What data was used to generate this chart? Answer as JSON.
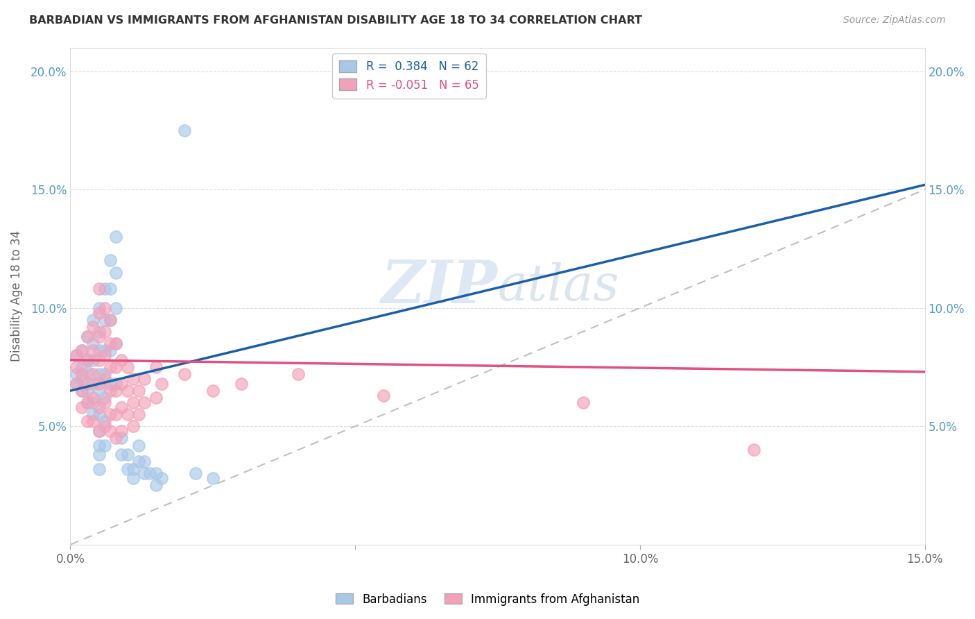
{
  "title": "BARBADIAN VS IMMIGRANTS FROM AFGHANISTAN DISABILITY AGE 18 TO 34 CORRELATION CHART",
  "source": "Source: ZipAtlas.com",
  "ylabel": "Disability Age 18 to 34",
  "xlim": [
    0.0,
    0.15
  ],
  "ylim": [
    0.0,
    0.21
  ],
  "xticks": [
    0.0,
    0.05,
    0.1,
    0.15
  ],
  "xticklabels": [
    "0.0%",
    "",
    "10.0%",
    "15.0%"
  ],
  "yticks_left": [
    0.05,
    0.1,
    0.15,
    0.2
  ],
  "yticklabels_left": [
    "5.0%",
    "10.0%",
    "15.0%",
    "20.0%"
  ],
  "yticks_right": [
    0.05,
    0.1,
    0.15,
    0.2
  ],
  "yticklabels_right": [
    "5.0%",
    "10.0%",
    "15.0%",
    "20.0%"
  ],
  "blue_color": "#a8c8e8",
  "pink_color": "#f4a0b8",
  "trendline_blue": "#1a5fa8",
  "trendline_pink": "#e05080",
  "watermark_color": "#c8d8ee",
  "barbadian_points": [
    [
      0.001,
      0.068
    ],
    [
      0.001,
      0.072
    ],
    [
      0.001,
      0.08
    ],
    [
      0.002,
      0.075
    ],
    [
      0.002,
      0.065
    ],
    [
      0.002,
      0.082
    ],
    [
      0.002,
      0.07
    ],
    [
      0.003,
      0.078
    ],
    [
      0.003,
      0.065
    ],
    [
      0.003,
      0.088
    ],
    [
      0.003,
      0.073
    ],
    [
      0.003,
      0.06
    ],
    [
      0.004,
      0.095
    ],
    [
      0.004,
      0.085
    ],
    [
      0.004,
      0.078
    ],
    [
      0.004,
      0.068
    ],
    [
      0.004,
      0.06
    ],
    [
      0.004,
      0.055
    ],
    [
      0.005,
      0.1
    ],
    [
      0.005,
      0.09
    ],
    [
      0.005,
      0.082
    ],
    [
      0.005,
      0.072
    ],
    [
      0.005,
      0.065
    ],
    [
      0.005,
      0.055
    ],
    [
      0.005,
      0.048
    ],
    [
      0.005,
      0.042
    ],
    [
      0.005,
      0.038
    ],
    [
      0.005,
      0.032
    ],
    [
      0.006,
      0.108
    ],
    [
      0.006,
      0.095
    ],
    [
      0.006,
      0.082
    ],
    [
      0.006,
      0.072
    ],
    [
      0.006,
      0.062
    ],
    [
      0.006,
      0.052
    ],
    [
      0.006,
      0.042
    ],
    [
      0.007,
      0.12
    ],
    [
      0.007,
      0.108
    ],
    [
      0.007,
      0.095
    ],
    [
      0.007,
      0.082
    ],
    [
      0.007,
      0.068
    ],
    [
      0.008,
      0.13
    ],
    [
      0.008,
      0.115
    ],
    [
      0.008,
      0.1
    ],
    [
      0.008,
      0.085
    ],
    [
      0.008,
      0.068
    ],
    [
      0.009,
      0.045
    ],
    [
      0.009,
      0.038
    ],
    [
      0.01,
      0.032
    ],
    [
      0.01,
      0.038
    ],
    [
      0.011,
      0.028
    ],
    [
      0.011,
      0.032
    ],
    [
      0.012,
      0.042
    ],
    [
      0.012,
      0.035
    ],
    [
      0.013,
      0.035
    ],
    [
      0.013,
      0.03
    ],
    [
      0.014,
      0.03
    ],
    [
      0.015,
      0.025
    ],
    [
      0.015,
      0.03
    ],
    [
      0.016,
      0.028
    ],
    [
      0.02,
      0.175
    ],
    [
      0.022,
      0.03
    ],
    [
      0.025,
      0.028
    ]
  ],
  "afghanistan_points": [
    [
      0.001,
      0.075
    ],
    [
      0.001,
      0.068
    ],
    [
      0.001,
      0.08
    ],
    [
      0.002,
      0.082
    ],
    [
      0.002,
      0.072
    ],
    [
      0.002,
      0.065
    ],
    [
      0.002,
      0.058
    ],
    [
      0.003,
      0.088
    ],
    [
      0.003,
      0.078
    ],
    [
      0.003,
      0.068
    ],
    [
      0.003,
      0.06
    ],
    [
      0.003,
      0.052
    ],
    [
      0.004,
      0.092
    ],
    [
      0.004,
      0.082
    ],
    [
      0.004,
      0.072
    ],
    [
      0.004,
      0.062
    ],
    [
      0.004,
      0.052
    ],
    [
      0.005,
      0.108
    ],
    [
      0.005,
      0.098
    ],
    [
      0.005,
      0.088
    ],
    [
      0.005,
      0.078
    ],
    [
      0.005,
      0.068
    ],
    [
      0.005,
      0.058
    ],
    [
      0.005,
      0.048
    ],
    [
      0.006,
      0.1
    ],
    [
      0.006,
      0.09
    ],
    [
      0.006,
      0.08
    ],
    [
      0.006,
      0.07
    ],
    [
      0.006,
      0.06
    ],
    [
      0.006,
      0.05
    ],
    [
      0.007,
      0.095
    ],
    [
      0.007,
      0.085
    ],
    [
      0.007,
      0.075
    ],
    [
      0.007,
      0.065
    ],
    [
      0.007,
      0.055
    ],
    [
      0.007,
      0.048
    ],
    [
      0.008,
      0.085
    ],
    [
      0.008,
      0.075
    ],
    [
      0.008,
      0.065
    ],
    [
      0.008,
      0.055
    ],
    [
      0.008,
      0.045
    ],
    [
      0.009,
      0.078
    ],
    [
      0.009,
      0.068
    ],
    [
      0.009,
      0.058
    ],
    [
      0.009,
      0.048
    ],
    [
      0.01,
      0.075
    ],
    [
      0.01,
      0.065
    ],
    [
      0.01,
      0.055
    ],
    [
      0.011,
      0.07
    ],
    [
      0.011,
      0.06
    ],
    [
      0.011,
      0.05
    ],
    [
      0.012,
      0.065
    ],
    [
      0.012,
      0.055
    ],
    [
      0.013,
      0.07
    ],
    [
      0.013,
      0.06
    ],
    [
      0.015,
      0.075
    ],
    [
      0.015,
      0.062
    ],
    [
      0.016,
      0.068
    ],
    [
      0.02,
      0.072
    ],
    [
      0.025,
      0.065
    ],
    [
      0.03,
      0.068
    ],
    [
      0.04,
      0.072
    ],
    [
      0.055,
      0.063
    ],
    [
      0.09,
      0.06
    ],
    [
      0.12,
      0.04
    ]
  ]
}
